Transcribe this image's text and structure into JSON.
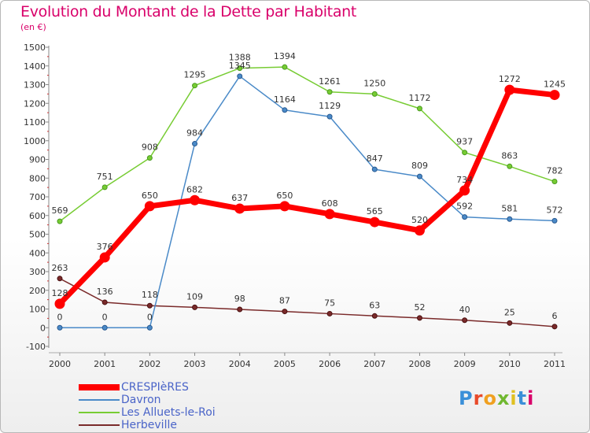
{
  "title": "Evolution du Montant de la Dette par Habitant",
  "subtitle": "(en €)",
  "logo": "Proxiti",
  "chart_data": {
    "type": "line",
    "categories": [
      "2000",
      "2001",
      "2002",
      "2003",
      "2004",
      "2005",
      "2006",
      "2007",
      "2008",
      "2009",
      "2010",
      "2011"
    ],
    "ylim": [
      -100,
      1500
    ],
    "yticks": [
      -100,
      0,
      100,
      200,
      300,
      400,
      500,
      600,
      700,
      800,
      900,
      1000,
      1100,
      1200,
      1300,
      1400,
      1500
    ],
    "grid": false,
    "legend_position": "bottom-left",
    "series": [
      {
        "name": "CRESPIèRES",
        "color": "#ff0000",
        "values": [
          128,
          376,
          650,
          682,
          637,
          650,
          608,
          565,
          520,
          734,
          1272,
          1245
        ]
      },
      {
        "name": "Davron",
        "color": "#4a8ac8",
        "values": [
          0,
          0,
          0,
          984,
          1345,
          1164,
          1129,
          847,
          809,
          592,
          581,
          572
        ]
      },
      {
        "name": "Les Alluets-le-Roi",
        "color": "#77cc33",
        "values": [
          569,
          751,
          908,
          1295,
          1388,
          1394,
          1261,
          1250,
          1172,
          937,
          863,
          782
        ]
      },
      {
        "name": "Herbeville",
        "color": "#7a2a2a",
        "values": [
          263,
          136,
          118,
          109,
          98,
          87,
          75,
          63,
          52,
          40,
          25,
          6
        ]
      }
    ],
    "labels": [
      [
        "128",
        "376",
        "650",
        "682",
        "637",
        "650",
        "608",
        "565",
        "520",
        "734",
        "1272",
        "1245"
      ],
      [
        "0",
        "0",
        "0",
        "984",
        "1345",
        "1164",
        "1129",
        "847",
        "809",
        "592",
        "581",
        "572"
      ],
      [
        "569",
        "751",
        "908",
        "1295",
        "1388",
        "1394",
        "1261",
        "1250",
        "1172",
        "937",
        "863",
        "782"
      ],
      [
        "263",
        "136",
        "118",
        "109",
        "98",
        "87",
        "75",
        "63",
        "52",
        "40",
        "25",
        "6"
      ]
    ]
  }
}
